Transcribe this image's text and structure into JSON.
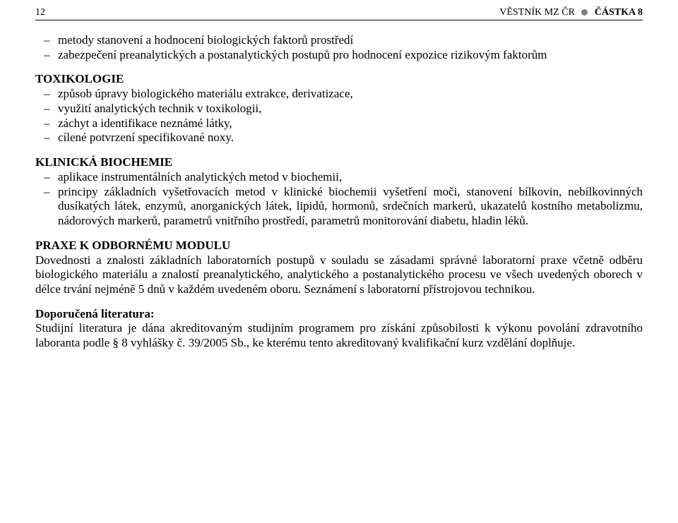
{
  "header": {
    "page_number": "12",
    "title": "VĚSTNÍK MZ ČR",
    "part": "ČÁSTKA 8"
  },
  "intro_list": [
    "metody stanovení a hodnocení biologických faktorů prostředí",
    "zabezpečení preanalytických a postanalytických postupů pro hodnocení expozice rizikovým faktorům"
  ],
  "sections": [
    {
      "heading": "TOXIKOLOGIE",
      "items": [
        "způsob úpravy biologického materiálu extrakce, derivatizace,",
        "využití analytických technik v toxikologii,",
        "záchyt a identifikace neznámé látky,",
        "cílené potvrzení specifikované noxy."
      ]
    },
    {
      "heading": "KLINICKÁ BIOCHEMIE",
      "items": [
        "aplikace instrumentálních analytických metod v biochemii,",
        "principy základních vyšetřovacích metod v klinické biochemii vyšetření moči, stanovení bílkovin, nebíl­kovinných dusíkatých látek, enzymů, anorganických látek, lipidů, hormonů, srdečních markerů, ukazatelů kostního metabolizmu, nádorových markerů, parametrů vnitřního prostředí, parametrů monitorování dia­betu, hladin léků."
      ]
    }
  ],
  "praxe": {
    "heading": "PRAXE K ODBORNÉMU MODULU",
    "body": "Dovednosti a znalosti základních laboratorních postupů v souladu se zásadami správné laboratorní praxe včetně odběru biologického materiálu a znalostí preanalytického, analytického a postanalytického procesu ve všech uvedených oborech v délce trvání nejméně 5 dnů v každém uvedeném oboru. Seznámení s laboratorní přístrojovou technikou."
  },
  "literature": {
    "heading": "Doporučená literatura:",
    "body": "Studijní literatura je dána akreditovaným studijním programem pro získání způsobilosti k výkonu povolání zdravotního laboranta podle § 8 vyhlášky č. 39/2005 Sb., ke kterému tento akreditovaný kvalifikační kurz vzdělání doplňuje."
  }
}
